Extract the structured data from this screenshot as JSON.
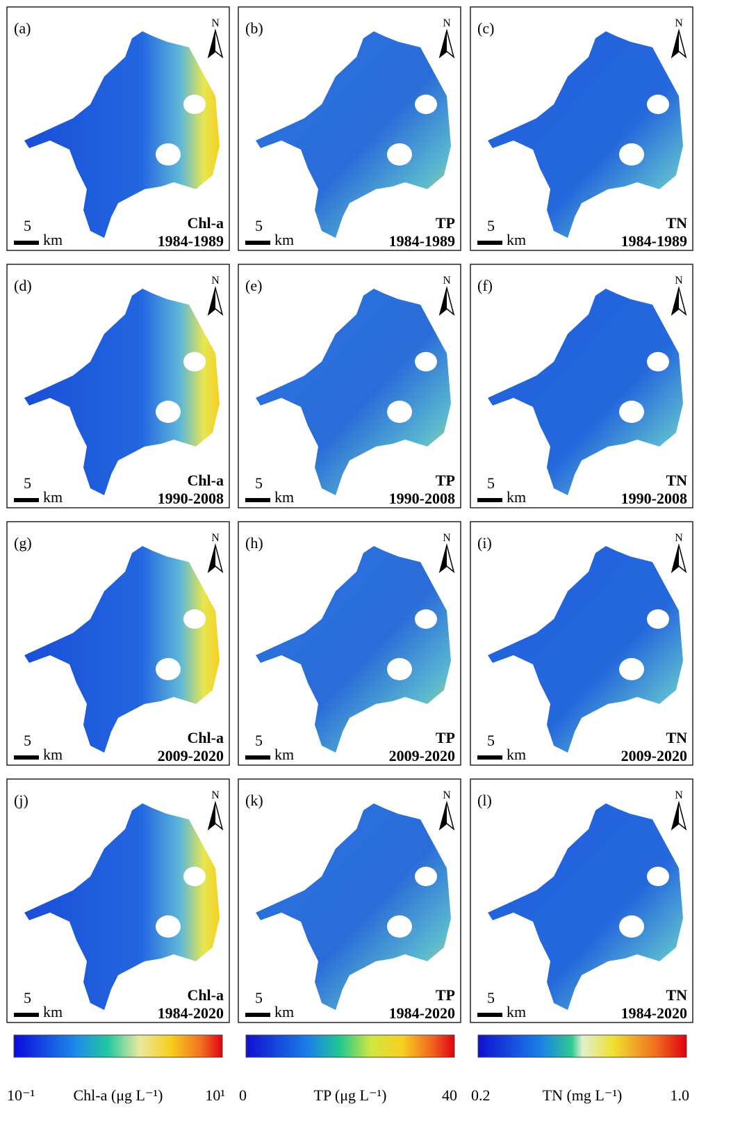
{
  "panels": [
    {
      "label": "(a)",
      "variable": "Chl-a",
      "period": "1984-1989"
    },
    {
      "label": "(b)",
      "variable": "TP",
      "period": "1984-1989"
    },
    {
      "label": "(c)",
      "variable": "TN",
      "period": "1984-1989"
    },
    {
      "label": "(d)",
      "variable": "Chl-a",
      "period": "1990-2008"
    },
    {
      "label": "(e)",
      "variable": "TP",
      "period": "1990-2008"
    },
    {
      "label": "(f)",
      "variable": "TN",
      "period": "1990-2008"
    },
    {
      "label": "(g)",
      "variable": "Chl-a",
      "period": "2009-2020"
    },
    {
      "label": "(h)",
      "variable": "TP",
      "period": "2009-2020"
    },
    {
      "label": "(i)",
      "variable": "TN",
      "period": "2009-2020"
    },
    {
      "label": "(j)",
      "variable": "Chl-a",
      "period": "1984-2020"
    },
    {
      "label": "(k)",
      "variable": "TP",
      "period": "1984-2020"
    },
    {
      "label": "(l)",
      "variable": "TN",
      "period": "1984-2020"
    }
  ],
  "north_label": "N",
  "scale_value": "5",
  "scale_unit": "km",
  "colorbars": [
    {
      "min_label": "10⁻¹",
      "title": "Chl-a (μg L⁻¹)",
      "max_label": "10¹"
    },
    {
      "min_label": "0",
      "title": "TP (μg L⁻¹)",
      "max_label": "40"
    },
    {
      "min_label": "0.2",
      "title": "TN (mg L⁻¹)",
      "max_label": "1.0"
    }
  ]
}
